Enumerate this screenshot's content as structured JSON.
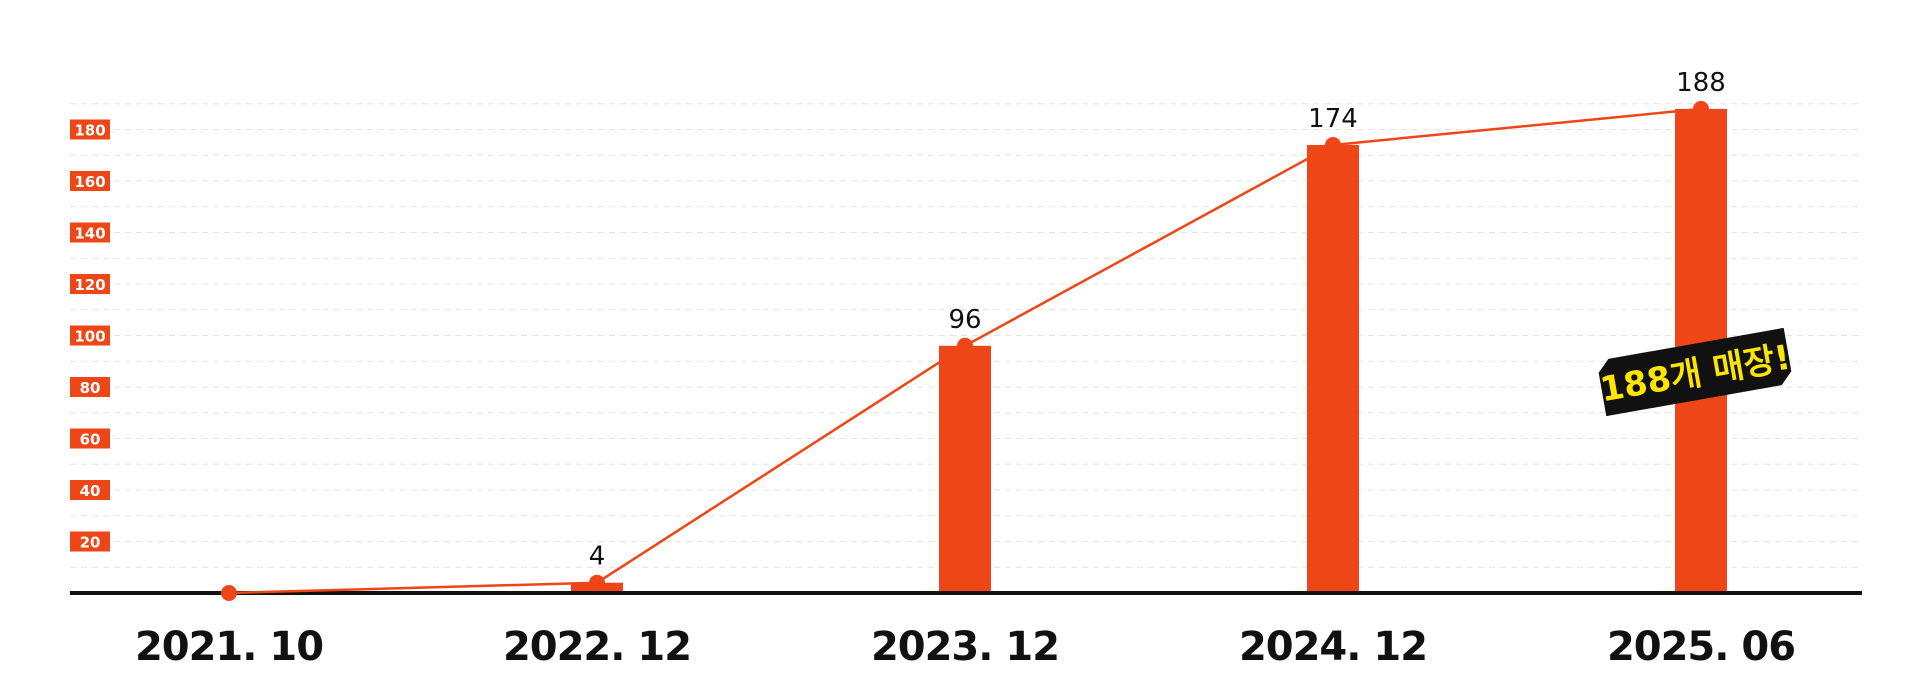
{
  "colors": {
    "accent": "#ee4616",
    "axis": "#111111",
    "grid": "#e4e4e4",
    "badge_bg": "#111111",
    "badge_text": "#ffe600",
    "tick_text": "#ffffff"
  },
  "chart_data": {
    "type": "bar",
    "categories": [
      "2021. 10",
      "2022. 12",
      "2023. 12",
      "2024. 12",
      "2025. 06"
    ],
    "values": [
      0,
      4,
      96,
      174,
      188
    ],
    "data_labels": [
      "",
      "4",
      "96",
      "174",
      "188"
    ],
    "line_overlay": true,
    "yticks": [
      "20",
      "40",
      "60",
      "80",
      "100",
      "120",
      "140",
      "160",
      "180"
    ],
    "ylim": [
      0,
      190
    ],
    "grid": true,
    "title": "",
    "xlabel": "",
    "ylabel": "",
    "annotation": "188개 매장!"
  }
}
